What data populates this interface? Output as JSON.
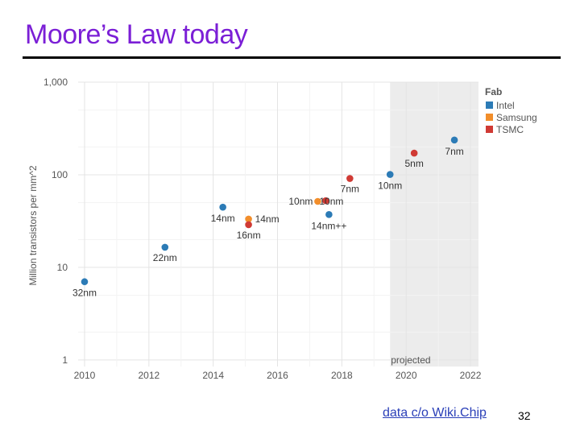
{
  "slide": {
    "title": "Moore’s Law today",
    "source_text": "data c/o Wiki.Chip",
    "page_number": "32"
  },
  "chart_data": {
    "type": "scatter",
    "title": "",
    "xlabel": "",
    "ylabel": "Million transistors per mm^2",
    "y_scale": "log",
    "xlim": [
      2009.8,
      2022.4
    ],
    "ylim": [
      0.85,
      1000
    ],
    "x_ticks": [
      2010,
      2012,
      2014,
      2016,
      2018,
      2020,
      2022
    ],
    "x_tick_labels": [
      "2010",
      "2012",
      "2014",
      "2016",
      "2018",
      "2020",
      "2022"
    ],
    "y_ticks": [
      1,
      10,
      100,
      1000
    ],
    "y_tick_labels": [
      "1",
      "10",
      "100",
      "1,000"
    ],
    "grid": true,
    "projected_region": {
      "x_from": 2019.5,
      "x_to": 2022.4,
      "label": "projected"
    },
    "legend": {
      "title": "Fab",
      "position": "top-right",
      "entries": [
        {
          "name": "Intel",
          "color": "#2c7bb6"
        },
        {
          "name": "Samsung",
          "color": "#f28e2b"
        },
        {
          "name": "TSMC",
          "color": "#d03a34"
        }
      ]
    },
    "series": [
      {
        "name": "Intel",
        "color": "#2c7bb6",
        "points": [
          {
            "x": 2010.0,
            "y": 7.0,
            "label": "32nm"
          },
          {
            "x": 2012.5,
            "y": 16.5,
            "label": "22nm"
          },
          {
            "x": 2014.3,
            "y": 44.7,
            "label": "14nm"
          },
          {
            "x": 2017.6,
            "y": 37.2,
            "label": "14nm++"
          },
          {
            "x": 2019.5,
            "y": 100.8,
            "label": "10nm"
          },
          {
            "x": 2021.5,
            "y": 237.2,
            "label": "7nm"
          }
        ]
      },
      {
        "name": "Samsung",
        "color": "#f28e2b",
        "points": [
          {
            "x": 2015.1,
            "y": 33.3,
            "label": "14nm"
          },
          {
            "x": 2017.25,
            "y": 51.6,
            "label": "10nm"
          }
        ]
      },
      {
        "name": "TSMC",
        "color": "#d03a34",
        "points": [
          {
            "x": 2015.1,
            "y": 28.9,
            "label": "16nm"
          },
          {
            "x": 2017.5,
            "y": 52.5,
            "label": "10nm"
          },
          {
            "x": 2018.25,
            "y": 91.2,
            "label": "7nm"
          },
          {
            "x": 2020.25,
            "y": 171.3,
            "label": "5nm"
          }
        ]
      }
    ]
  }
}
